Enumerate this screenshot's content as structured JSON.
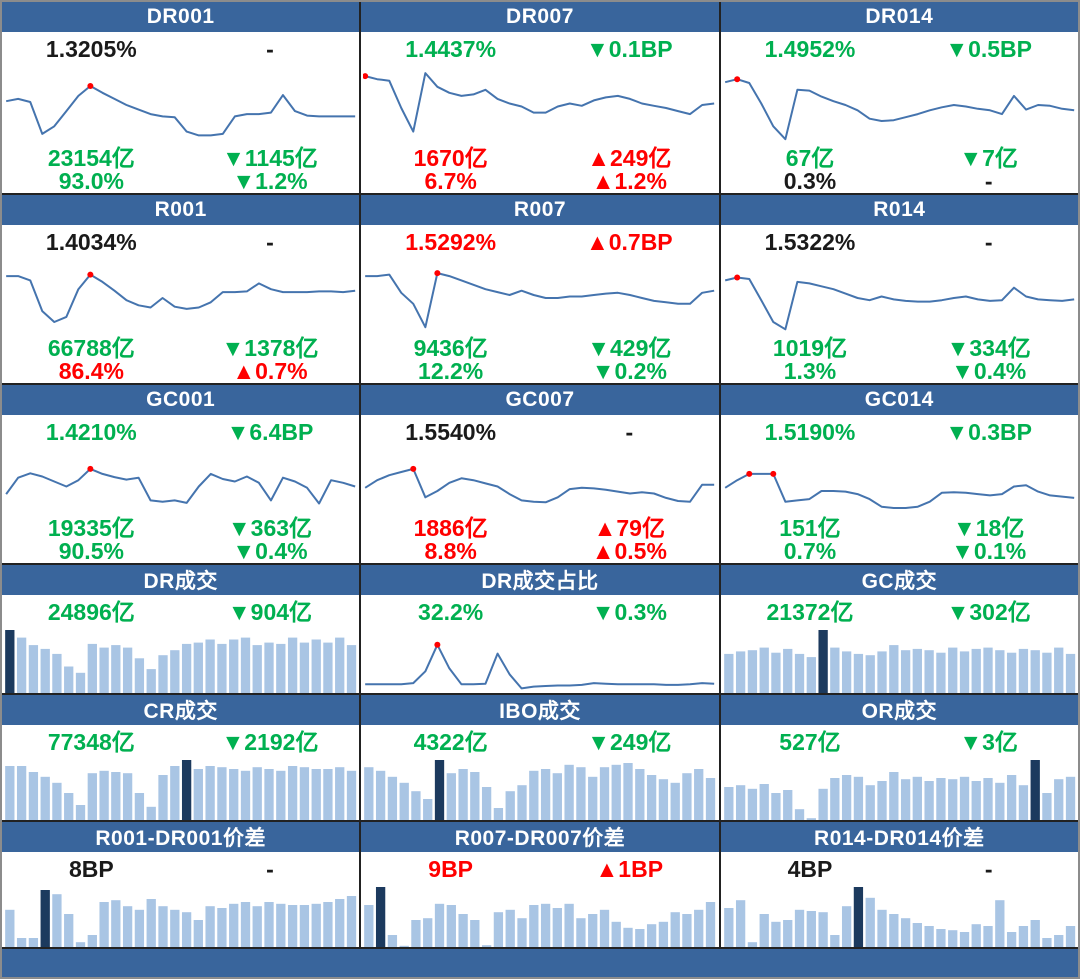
{
  "colors": {
    "header": "#39659C",
    "frame": "#8C8C8C",
    "border": "#222222",
    "line": "#4574AE",
    "red_dot": "#FF0000",
    "bar_light": "#A9C5E4",
    "bar_dark": "#1C3A5E",
    "green": "#00B050",
    "red": "#FF0000",
    "black": "#1A1A1A"
  },
  "scale_note": "sparkline/bar values normalized 0-100 from pixel heights; source charts have no axis labels",
  "chart_data": [
    {
      "id": "dr001",
      "title": "DR001",
      "chart_type": "line",
      "dot_indices": [
        7
      ],
      "values": [
        55,
        58,
        54,
        12,
        22,
        42,
        62,
        75,
        66,
        58,
        50,
        44,
        38,
        35,
        34,
        15,
        10,
        10,
        12,
        35,
        38,
        38,
        40,
        63,
        42,
        36,
        35,
        35,
        35,
        35
      ],
      "labels": {
        "main": {
          "text": "1.3205%",
          "color": "black"
        },
        "main_change": {
          "text": "-",
          "color": "black"
        },
        "rows": [
          {
            "left": {
              "text": "23154亿",
              "color": "green"
            },
            "right": {
              "text": "▼1145亿",
              "color": "green"
            }
          },
          {
            "left": {
              "text": "93.0%",
              "color": "green"
            },
            "right": {
              "text": "▼1.2%",
              "color": "green"
            }
          }
        ]
      }
    },
    {
      "id": "dr007",
      "title": "DR007",
      "chart_type": "line",
      "dot_indices": [
        0
      ],
      "values": [
        88,
        84,
        82,
        46,
        15,
        92,
        74,
        66,
        62,
        64,
        70,
        58,
        52,
        48,
        40,
        40,
        48,
        52,
        49,
        56,
        60,
        62,
        58,
        52,
        49,
        46,
        42,
        38,
        50,
        52
      ],
      "labels": {
        "main": {
          "text": "1.4437%",
          "color": "green"
        },
        "main_change": {
          "text": "▼0.1BP",
          "color": "green"
        },
        "rows": [
          {
            "left": {
              "text": "1670亿",
              "color": "red"
            },
            "right": {
              "text": "▲249亿",
              "color": "red"
            }
          },
          {
            "left": {
              "text": "6.7%",
              "color": "red"
            },
            "right": {
              "text": "▲1.2%",
              "color": "red"
            }
          }
        ]
      }
    },
    {
      "id": "dr014",
      "title": "DR014",
      "chart_type": "line",
      "dot_indices": [
        1
      ],
      "values": [
        80,
        84,
        79,
        52,
        22,
        5,
        70,
        69,
        61,
        55,
        50,
        43,
        32,
        29,
        30,
        34,
        38,
        43,
        47,
        50,
        48,
        45,
        43,
        38,
        62,
        44,
        50,
        49,
        45,
        43
      ],
      "labels": {
        "main": {
          "text": "1.4952%",
          "color": "green"
        },
        "main_change": {
          "text": "▼0.5BP",
          "color": "green"
        },
        "rows": [
          {
            "left": {
              "text": "67亿",
              "color": "green"
            },
            "right": {
              "text": "▼7亿",
              "color": "green"
            }
          },
          {
            "left": {
              "text": "0.3%",
              "color": "black"
            },
            "right": {
              "text": "-",
              "color": "black"
            }
          }
        ]
      }
    },
    {
      "id": "r001",
      "title": "R001",
      "chart_type": "line",
      "dot_indices": [
        7
      ],
      "values": [
        78,
        78,
        72,
        30,
        15,
        22,
        60,
        80,
        70,
        58,
        45,
        38,
        35,
        48,
        36,
        33,
        35,
        42,
        56,
        56,
        57,
        68,
        60,
        56,
        56,
        56,
        57,
        57,
        56,
        58
      ],
      "labels": {
        "main": {
          "text": "1.4034%",
          "color": "black"
        },
        "main_change": {
          "text": "-",
          "color": "black"
        },
        "rows": [
          {
            "left": {
              "text": "66788亿",
              "color": "green"
            },
            "right": {
              "text": "▼1378亿",
              "color": "green"
            }
          },
          {
            "left": {
              "text": "86.4%",
              "color": "red"
            },
            "right": {
              "text": "▲0.7%",
              "color": "red"
            }
          }
        ]
      }
    },
    {
      "id": "r007",
      "title": "R007",
      "chart_type": "line",
      "dot_indices": [
        6
      ],
      "values": [
        78,
        78,
        80,
        55,
        40,
        8,
        82,
        78,
        72,
        66,
        60,
        56,
        52,
        58,
        52,
        48,
        48,
        50,
        50,
        52,
        54,
        55,
        52,
        48,
        44,
        42,
        40,
        40,
        55,
        58
      ],
      "labels": {
        "main": {
          "text": "1.5292%",
          "color": "red"
        },
        "main_change": {
          "text": "▲0.7BP",
          "color": "red"
        },
        "rows": [
          {
            "left": {
              "text": "9436亿",
              "color": "green"
            },
            "right": {
              "text": "▼429亿",
              "color": "green"
            }
          },
          {
            "left": {
              "text": "12.2%",
              "color": "green"
            },
            "right": {
              "text": "▼0.2%",
              "color": "green"
            }
          }
        ]
      }
    },
    {
      "id": "r014",
      "title": "R014",
      "chart_type": "line",
      "dot_indices": [
        1
      ],
      "values": [
        72,
        76,
        74,
        45,
        15,
        5,
        70,
        68,
        64,
        60,
        54,
        48,
        45,
        50,
        46,
        44,
        43,
        43,
        45,
        48,
        50,
        46,
        44,
        45,
        62,
        50,
        46,
        45,
        44,
        46
      ],
      "labels": {
        "main": {
          "text": "1.5322%",
          "color": "black"
        },
        "main_change": {
          "text": "-",
          "color": "black"
        },
        "rows": [
          {
            "left": {
              "text": "1019亿",
              "color": "green"
            },
            "right": {
              "text": "▼334亿",
              "color": "green"
            }
          },
          {
            "left": {
              "text": "1.3%",
              "color": "green"
            },
            "right": {
              "text": "▼0.4%",
              "color": "green"
            }
          }
        ]
      }
    },
    {
      "id": "gc001",
      "title": "GC001",
      "chart_type": "line",
      "dot_indices": [
        7
      ],
      "values": [
        30,
        56,
        63,
        58,
        50,
        42,
        52,
        70,
        62,
        57,
        53,
        56,
        20,
        18,
        20,
        16,
        42,
        62,
        54,
        50,
        58,
        48,
        20,
        56,
        50,
        40,
        15,
        52,
        48,
        42
      ],
      "labels": {
        "main": {
          "text": "1.4210%",
          "color": "green"
        },
        "main_change": {
          "text": "▼6.4BP",
          "color": "green"
        },
        "rows": [
          {
            "left": {
              "text": "19335亿",
              "color": "green"
            },
            "right": {
              "text": "▼363亿",
              "color": "green"
            }
          },
          {
            "left": {
              "text": "90.5%",
              "color": "green"
            },
            "right": {
              "text": "▼0.4%",
              "color": "green"
            }
          }
        ]
      }
    },
    {
      "id": "gc007",
      "title": "GC007",
      "chart_type": "line",
      "dot_indices": [
        4
      ],
      "values": [
        40,
        52,
        60,
        65,
        70,
        25,
        35,
        48,
        55,
        52,
        47,
        42,
        30,
        20,
        18,
        17,
        25,
        38,
        40,
        39,
        37,
        34,
        31,
        33,
        31,
        24,
        19,
        18,
        45,
        45
      ],
      "labels": {
        "main": {
          "text": "1.5540%",
          "color": "black"
        },
        "main_change": {
          "text": "-",
          "color": "black"
        },
        "rows": [
          {
            "left": {
              "text": "1886亿",
              "color": "red"
            },
            "right": {
              "text": "▲79亿",
              "color": "red"
            }
          },
          {
            "left": {
              "text": "8.8%",
              "color": "red"
            },
            "right": {
              "text": "▲0.5%",
              "color": "red"
            }
          }
        ]
      }
    },
    {
      "id": "gc014",
      "title": "GC014",
      "chart_type": "line",
      "dot_indices": [
        2,
        4
      ],
      "values": [
        40,
        52,
        62,
        62,
        62,
        18,
        20,
        22,
        35,
        35,
        34,
        30,
        22,
        10,
        8,
        8,
        10,
        18,
        32,
        33,
        32,
        30,
        28,
        30,
        42,
        44,
        34,
        28,
        26,
        24
      ],
      "labels": {
        "main": {
          "text": "1.5190%",
          "color": "green"
        },
        "main_change": {
          "text": "▼0.3BP",
          "color": "green"
        },
        "rows": [
          {
            "left": {
              "text": "151亿",
              "color": "green"
            },
            "right": {
              "text": "▼18亿",
              "color": "green"
            }
          },
          {
            "left": {
              "text": "0.7%",
              "color": "green"
            },
            "right": {
              "text": "▼0.1%",
              "color": "green"
            }
          }
        ]
      }
    },
    {
      "id": "dr_vol",
      "title": "DR成交",
      "chart_type": "bar",
      "highlight_index": 0,
      "values": [
        100,
        88,
        76,
        70,
        62,
        42,
        32,
        78,
        72,
        76,
        72,
        55,
        38,
        60,
        68,
        78,
        80,
        85,
        78,
        85,
        88,
        76,
        80,
        78,
        88,
        80,
        85,
        80,
        88,
        76
      ],
      "labels": {
        "main": {
          "text": "24896亿",
          "color": "green"
        },
        "main_change": {
          "text": "▼904亿",
          "color": "green"
        },
        "rows": []
      }
    },
    {
      "id": "dr_ratio",
      "title": "DR成交占比",
      "chart_type": "line",
      "dot_indices": [
        6
      ],
      "values": [
        8,
        8,
        8,
        8,
        10,
        30,
        75,
        35,
        8,
        8,
        9,
        60,
        25,
        1,
        4,
        5,
        6,
        6,
        7,
        10,
        9,
        8,
        8,
        8,
        8,
        7,
        7,
        8,
        10,
        9
      ],
      "labels": {
        "main": {
          "text": "32.2%",
          "color": "green"
        },
        "main_change": {
          "text": "▼0.3%",
          "color": "green"
        },
        "rows": []
      }
    },
    {
      "id": "gc_vol",
      "title": "GC成交",
      "chart_type": "bar",
      "highlight_index": 8,
      "values": [
        62,
        66,
        68,
        72,
        64,
        70,
        62,
        57,
        100,
        72,
        66,
        62,
        60,
        66,
        76,
        68,
        70,
        68,
        64,
        72,
        66,
        70,
        72,
        68,
        64,
        70,
        68,
        64,
        72,
        62
      ],
      "labels": {
        "main": {
          "text": "21372亿",
          "color": "green"
        },
        "main_change": {
          "text": "▼302亿",
          "color": "green"
        },
        "rows": []
      }
    },
    {
      "id": "cr_vol",
      "title": "CR成交",
      "chart_type": "bar",
      "highlight_index": 15,
      "values": [
        90,
        90,
        80,
        72,
        62,
        45,
        25,
        78,
        82,
        80,
        78,
        45,
        22,
        75,
        90,
        100,
        85,
        90,
        88,
        85,
        82,
        88,
        85,
        82,
        90,
        88,
        85,
        85,
        88,
        82
      ],
      "labels": {
        "main": {
          "text": "77348亿",
          "color": "green"
        },
        "main_change": {
          "text": "▼2192亿",
          "color": "green"
        },
        "rows": []
      }
    },
    {
      "id": "ibo_vol",
      "title": "IBO成交",
      "chart_type": "bar",
      "highlight_index": 6,
      "values": [
        88,
        82,
        72,
        62,
        48,
        35,
        100,
        78,
        85,
        80,
        55,
        20,
        48,
        58,
        82,
        85,
        78,
        92,
        88,
        72,
        88,
        92,
        95,
        85,
        75,
        68,
        62,
        78,
        85,
        70
      ],
      "labels": {
        "main": {
          "text": "4322亿",
          "color": "green"
        },
        "main_change": {
          "text": "▼249亿",
          "color": "green"
        },
        "rows": []
      }
    },
    {
      "id": "or_vol",
      "title": "OR成交",
      "chart_type": "bar",
      "highlight_index": 26,
      "values": [
        55,
        58,
        52,
        60,
        45,
        50,
        18,
        3,
        52,
        70,
        75,
        72,
        58,
        65,
        80,
        68,
        72,
        65,
        70,
        68,
        72,
        65,
        70,
        62,
        75,
        58,
        100,
        45,
        68,
        72
      ],
      "labels": {
        "main": {
          "text": "527亿",
          "color": "green"
        },
        "main_change": {
          "text": "▼3亿",
          "color": "green"
        },
        "rows": []
      }
    },
    {
      "id": "spread001",
      "title": "R001-DR001价差",
      "chart_type": "bar",
      "highlight_index": 3,
      "values": [
        62,
        15,
        15,
        95,
        88,
        55,
        8,
        20,
        75,
        78,
        68,
        62,
        80,
        68,
        62,
        58,
        45,
        68,
        65,
        72,
        75,
        68,
        75,
        72,
        70,
        70,
        72,
        75,
        80,
        85
      ],
      "labels": {
        "main": {
          "text": "8BP",
          "color": "black"
        },
        "main_change": {
          "text": "-",
          "color": "black"
        },
        "rows": []
      }
    },
    {
      "id": "spread007",
      "title": "R007-DR007价差",
      "chart_type": "bar",
      "highlight_index": 1,
      "values": [
        70,
        100,
        20,
        2,
        45,
        48,
        72,
        70,
        55,
        45,
        3,
        58,
        62,
        48,
        70,
        72,
        65,
        72,
        48,
        55,
        62,
        42,
        32,
        30,
        38,
        42,
        58,
        55,
        62,
        75
      ],
      "labels": {
        "main": {
          "text": "9BP",
          "color": "red"
        },
        "main_change": {
          "text": "▲1BP",
          "color": "red"
        },
        "rows": []
      }
    },
    {
      "id": "spread014",
      "title": "R014-DR014价差",
      "chart_type": "bar",
      "highlight_index": 11,
      "values": [
        65,
        78,
        8,
        55,
        42,
        45,
        62,
        60,
        58,
        20,
        68,
        100,
        82,
        62,
        55,
        48,
        40,
        35,
        30,
        28,
        25,
        38,
        35,
        78,
        25,
        35,
        45,
        15,
        20,
        35
      ],
      "labels": {
        "main": {
          "text": "4BP",
          "color": "black"
        },
        "main_change": {
          "text": "-",
          "color": "black"
        },
        "rows": []
      }
    }
  ]
}
